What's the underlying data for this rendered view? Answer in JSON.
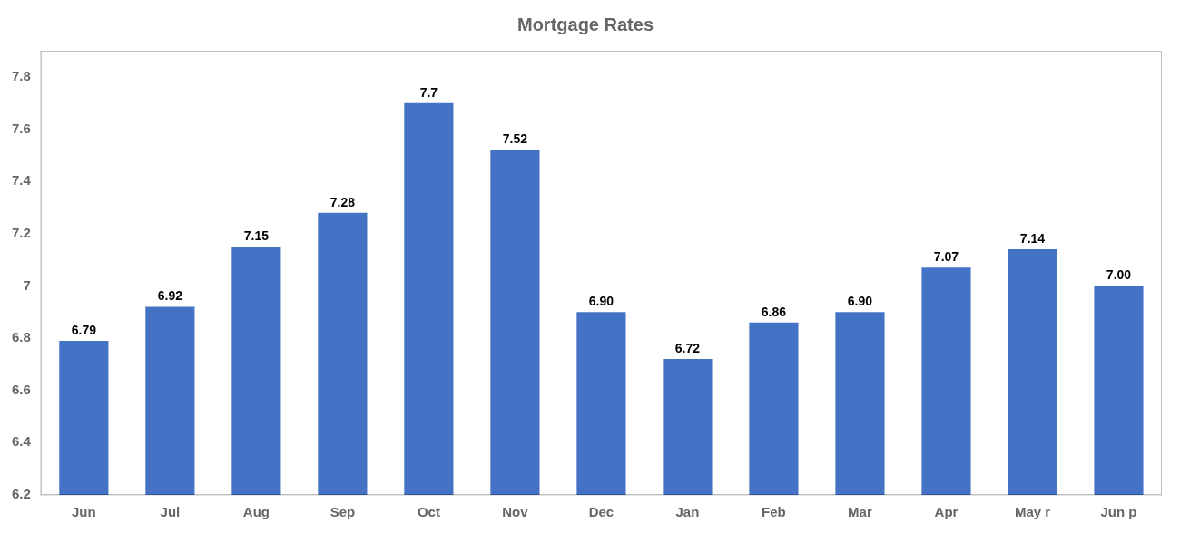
{
  "chart_data": {
    "type": "bar",
    "title": "Mortgage Rates",
    "categories": [
      "Jun",
      "Jul",
      "Aug",
      "Sep",
      "Oct",
      "Nov",
      "Dec",
      "Jan",
      "Feb",
      "Mar",
      "Apr",
      "May r",
      "Jun p"
    ],
    "values": [
      6.79,
      6.92,
      7.15,
      7.28,
      7.7,
      7.52,
      6.9,
      6.72,
      6.86,
      6.9,
      7.07,
      7.14,
      7.0
    ],
    "value_labels": [
      "6.79",
      "6.92",
      "7.15",
      "7.28",
      "7.7",
      "7.52",
      "6.90",
      "6.72",
      "6.86",
      "6.90",
      "7.07",
      "7.14",
      "7.00"
    ],
    "color": "#4472C4",
    "ylim": [
      6.2,
      7.9
    ],
    "yticks": [
      6.2,
      6.4,
      6.6,
      6.8,
      7.0,
      7.2,
      7.4,
      7.6,
      7.8
    ],
    "grid": false,
    "data_labels": true
  }
}
